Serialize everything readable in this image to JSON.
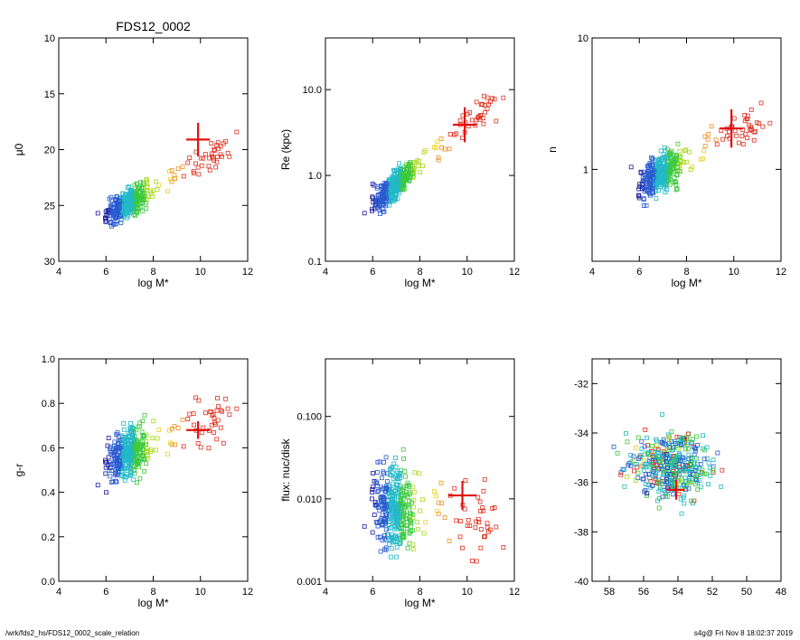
{
  "footer": {
    "path": "/wrk/fds2_hs/FDS12_0002_scale_relation",
    "stamp": "s4g@  Fri Nov  8 18:02:37 2019"
  },
  "colors": {
    "highlight": "#e01010",
    "palette": [
      "#1a1aa0",
      "#2a5ad0",
      "#22b8c8",
      "#3cc83c",
      "#a8d818",
      "#e8d020",
      "#f09020",
      "#e03020"
    ]
  },
  "chart_data": [
    {
      "type": "scatter",
      "title": "FDS12_0002",
      "xlabel": "log M*",
      "ylabel": "μ0",
      "xlim": [
        4,
        12
      ],
      "ylim": [
        30,
        10
      ],
      "y_reversed": true,
      "xticks": [
        "4",
        "6",
        "8",
        "10",
        "12"
      ],
      "yticks": [
        "10",
        "15",
        "20",
        "25",
        "30"
      ],
      "highlight": {
        "x": 9.9,
        "y": 19.1,
        "xerr": 0.5,
        "yerr": 1.5
      }
    },
    {
      "type": "scatter",
      "title": "",
      "xlabel": "log M*",
      "ylabel": "Re (kpc)",
      "xlim": [
        4,
        12
      ],
      "ylim": [
        0.1,
        40
      ],
      "ylog": true,
      "xticks": [
        "4",
        "6",
        "8",
        "10",
        "12"
      ],
      "yticks": [
        "0.1",
        "1.0",
        "10.0"
      ],
      "highlight": {
        "x": 9.9,
        "y": 3.9,
        "xerr": 0.5,
        "yerr_factor": 1.6
      }
    },
    {
      "type": "scatter",
      "title": "",
      "xlabel": "log M*",
      "ylabel": "n",
      "xlim": [
        4,
        12
      ],
      "ylim": [
        0.2,
        10
      ],
      "ylog": true,
      "xticks": [
        "4",
        "6",
        "8",
        "10",
        "12"
      ],
      "yticks": [
        "1",
        "10"
      ],
      "highlight": {
        "x": 9.9,
        "y": 2.05,
        "xerr": 0.5,
        "yerr_factor": 1.4
      }
    },
    {
      "type": "scatter",
      "title": "",
      "xlabel": "log M*",
      "ylabel": "g-r",
      "xlim": [
        4,
        12
      ],
      "ylim": [
        0.0,
        1.0
      ],
      "xticks": [
        "4",
        "6",
        "8",
        "10",
        "12"
      ],
      "yticks": [
        "0.0",
        "0.2",
        "0.4",
        "0.6",
        "0.8",
        "1.0"
      ],
      "highlight": {
        "x": 9.9,
        "y": 0.68,
        "xerr": 0.5,
        "yerr": 0.04
      }
    },
    {
      "type": "scatter",
      "title": "",
      "xlabel": "log M*",
      "ylabel": "flux: nuc/disk",
      "xlim": [
        4,
        12
      ],
      "ylim": [
        0.001,
        0.5
      ],
      "ylog": true,
      "xticks": [
        "4",
        "6",
        "8",
        "10",
        "12"
      ],
      "yticks": [
        "0.001",
        "0.010",
        "0.100"
      ],
      "highlight": {
        "x": 9.8,
        "y": 0.011,
        "xerr": 0.6,
        "yerr_factor": 1.5
      }
    },
    {
      "type": "scatter",
      "title": "",
      "xlabel": "",
      "ylabel": "",
      "xlim": [
        59,
        48
      ],
      "ylim": [
        -40,
        -31
      ],
      "x_reversed": true,
      "xticks": [
        "58",
        "56",
        "54",
        "52",
        "50",
        "48"
      ],
      "yticks": [
        "-40",
        "-38",
        "-36",
        "-34",
        "-32"
      ],
      "highlight": {
        "x": 54.1,
        "y": -36.3,
        "xerr": 0.5,
        "yerr": 0.4
      }
    }
  ]
}
